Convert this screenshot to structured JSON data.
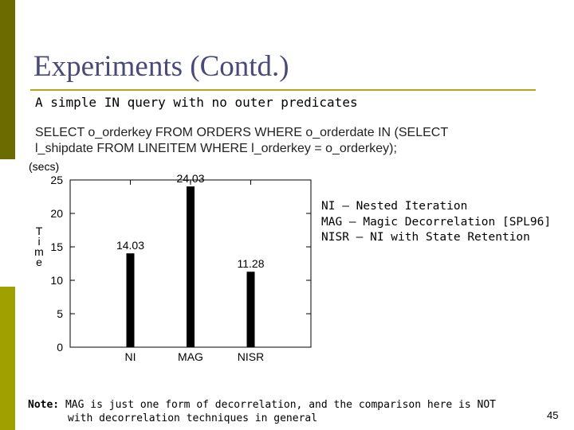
{
  "slide": {
    "title": "Experiments (Contd.)",
    "subtitle": "A simple IN query with no outer predicates",
    "sql_line1": "SELECT o_orderkey FROM ORDERS WHERE o_orderdate IN (SELECT",
    "sql_line2": "l_shipdate FROM LINEITEM WHERE l_orderkey = o_orderkey);",
    "legend": [
      "NI – Nested Iteration",
      "MAG – Magic Decorrelation [SPL96]",
      "NISR – NI with State Retention"
    ],
    "note_label": "Note:",
    "note_line1": " MAG is just one form of decorrelation, and the comparison here is NOT",
    "note_line2": "with decorrelation techniques in general",
    "page_number": "45",
    "colors": {
      "accent_bar_top": "#6b6b00",
      "accent_bar_bottom": "#a0a000",
      "rule": "#b9a21a",
      "title": "#4a4a78"
    }
  },
  "chart_data": {
    "type": "bar",
    "categories": [
      "NI",
      "MAG",
      "NISR"
    ],
    "values": [
      14.03,
      24.03,
      11.28
    ],
    "value_labels": [
      "14.03",
      "24.03",
      "11.28"
    ],
    "ylabel_unit": "(secs)",
    "ylabel": "Time",
    "ylim": [
      0,
      25
    ],
    "yticks": [
      0,
      5,
      10,
      15,
      20,
      25
    ],
    "grid": false,
    "bar_color": "#000000"
  }
}
